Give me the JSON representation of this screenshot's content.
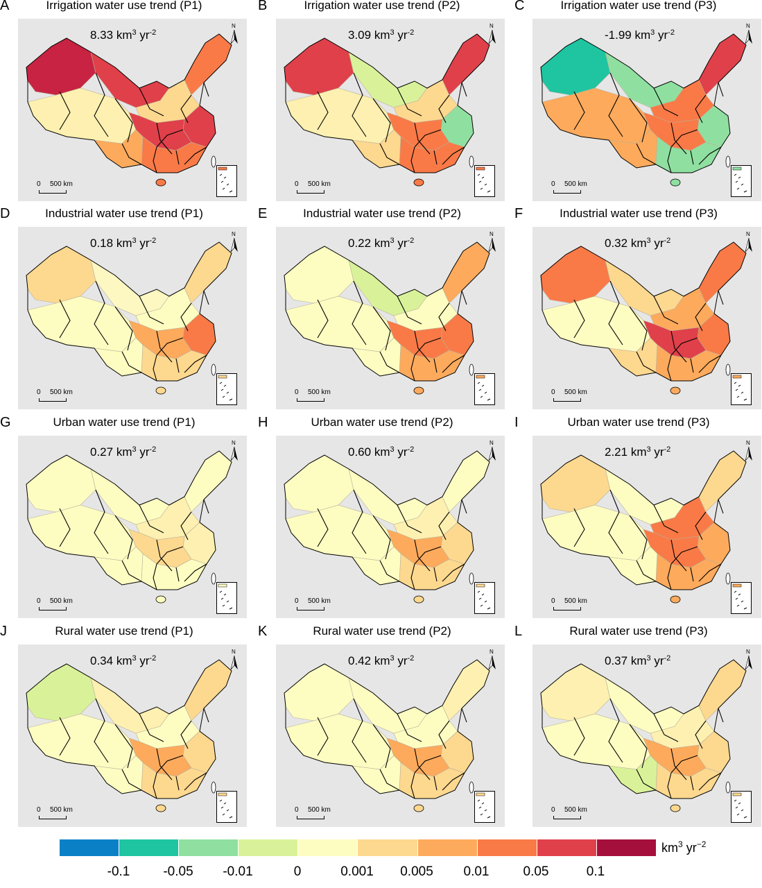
{
  "panels": [
    {
      "letter": "A",
      "title": "Irrigation water use trend (P1)",
      "value": "8.33",
      "palette": "irr1"
    },
    {
      "letter": "B",
      "title": "Irrigation water use trend (P2)",
      "value": "3.09",
      "palette": "irr2"
    },
    {
      "letter": "C",
      "title": "Irrigation water use trend (P3)",
      "value": "-1.99",
      "palette": "irr3"
    },
    {
      "letter": "D",
      "title": "Industrial water use trend (P1)",
      "value": "0.18",
      "palette": "ind1"
    },
    {
      "letter": "E",
      "title": "Industrial water use trend (P2)",
      "value": "0.22",
      "palette": "ind2"
    },
    {
      "letter": "F",
      "title": "Industrial water use trend (P3)",
      "value": "0.32",
      "palette": "ind3"
    },
    {
      "letter": "G",
      "title": "Urban water use trend (P1)",
      "value": "0.27",
      "palette": "urb1"
    },
    {
      "letter": "H",
      "title": "Urban water use trend (P2)",
      "value": "0.60",
      "palette": "urb2"
    },
    {
      "letter": "I",
      "title": "Urban water use trend (P3)",
      "value": "2.21",
      "palette": "urb3"
    },
    {
      "letter": "J",
      "title": "Rural water use trend (P1)",
      "value": "0.34",
      "palette": "rur1"
    },
    {
      "letter": "K",
      "title": "Rural water use trend (P2)",
      "value": "0.42",
      "palette": "rur2"
    },
    {
      "letter": "L",
      "title": "Rural water use trend (P3)",
      "value": "0.37",
      "palette": "rur3"
    }
  ],
  "unit": {
    "base": "km",
    "exp1": "3",
    "mid": " yr",
    "exp2": "-2"
  },
  "scalebar": {
    "zero": "0",
    "label": "500 km"
  },
  "north_label": "N",
  "legend": {
    "colors": [
      "#0a80c6",
      "#1fc5a1",
      "#8fe0a0",
      "#d9f29a",
      "#fdfdc2",
      "#fdd88f",
      "#fdaa5c",
      "#f97a47",
      "#e0404a",
      "#a50f3c"
    ],
    "ticks": [
      "-0.1",
      "-0.05",
      "-0.01",
      "0",
      "0.001",
      "0.005",
      "0.01",
      "0.05",
      "0.1"
    ],
    "unit": {
      "base": "km",
      "exp1": "3",
      "mid": " yr",
      "exp2": "−2"
    }
  },
  "palettes": {
    "irr1": {
      "west": "#c82342",
      "northwest": "#e0404a",
      "tibet": "#fdf0b0",
      "north": "#fdd88f",
      "northeast": "#f97a47",
      "east": "#e0404a",
      "south": "#f97a47",
      "southwest": "#fdaa5c",
      "center": "#e0404a"
    },
    "irr2": {
      "west": "#e0404a",
      "northwest": "#d9f29a",
      "tibet": "#fdf0b0",
      "north": "#fdd88f",
      "northeast": "#e0404a",
      "east": "#8fe0a0",
      "south": "#f97a47",
      "southwest": "#fdd88f",
      "center": "#f97a47"
    },
    "irr3": {
      "west": "#1fc5a1",
      "northwest": "#8fe0a0",
      "tibet": "#fdaa5c",
      "north": "#f97a47",
      "northeast": "#e0404a",
      "east": "#8fe0a0",
      "south": "#8fe0a0",
      "southwest": "#fdaa5c",
      "center": "#f97a47"
    },
    "ind1": {
      "west": "#fdd88f",
      "northwest": "#fdf7c2",
      "tibet": "#fdfdc2",
      "north": "#fdfdc2",
      "northeast": "#fdd88f",
      "east": "#f97a47",
      "south": "#fdd88f",
      "southwest": "#fdfdc2",
      "center": "#fdaa5c"
    },
    "ind2": {
      "west": "#fdfdc2",
      "northwest": "#d9f29a",
      "tibet": "#fdfdc2",
      "north": "#fdfdc2",
      "northeast": "#fdaa5c",
      "east": "#f97a47",
      "south": "#fdaa5c",
      "southwest": "#fdfdc2",
      "center": "#f97a47"
    },
    "ind3": {
      "west": "#f97a47",
      "northwest": "#fdd88f",
      "tibet": "#fdfdc2",
      "north": "#fdaa5c",
      "northeast": "#f97a47",
      "east": "#f97a47",
      "south": "#fdaa5c",
      "southwest": "#fdd88f",
      "center": "#e0404a"
    },
    "urb1": {
      "west": "#fdfdc2",
      "northwest": "#fdfdc2",
      "tibet": "#fdfdc2",
      "north": "#fdf0b0",
      "northeast": "#fdfdc2",
      "east": "#fdf0b0",
      "south": "#fdfdc2",
      "southwest": "#fdfdc2",
      "center": "#fdd88f"
    },
    "urb2": {
      "west": "#fdfdc2",
      "northwest": "#fdfdc2",
      "tibet": "#fdfdc2",
      "north": "#fdf0b0",
      "northeast": "#fdfdc2",
      "east": "#fdd88f",
      "south": "#fdd88f",
      "southwest": "#fdfdc2",
      "center": "#fdaa5c"
    },
    "urb3": {
      "west": "#fdd88f",
      "northwest": "#fdfdc2",
      "tibet": "#fdfdc2",
      "north": "#f97a47",
      "northeast": "#fdd88f",
      "east": "#fdaa5c",
      "south": "#fdaa5c",
      "southwest": "#fdfdc2",
      "center": "#f97a47"
    },
    "rur1": {
      "west": "#d9f29a",
      "northwest": "#fdf0b0",
      "tibet": "#fdfdc2",
      "north": "#fdfdc2",
      "northeast": "#fdd88f",
      "east": "#fdd88f",
      "south": "#fdd88f",
      "southwest": "#fdfdc2",
      "center": "#fdaa5c"
    },
    "rur2": {
      "west": "#fdfdc2",
      "northwest": "#fdfdc2",
      "tibet": "#fdfdc2",
      "north": "#fdfdc2",
      "northeast": "#fdf0b0",
      "east": "#fdd88f",
      "south": "#fdd88f",
      "southwest": "#fdfdc2",
      "center": "#fdaa5c"
    },
    "rur3": {
      "west": "#fdf0b0",
      "northwest": "#fdfdc2",
      "tibet": "#fdfdc2",
      "north": "#fdf0b0",
      "northeast": "#fdd88f",
      "east": "#fdd88f",
      "south": "#fdd88f",
      "southwest": "#d9f29a",
      "center": "#fdaa5c"
    }
  }
}
